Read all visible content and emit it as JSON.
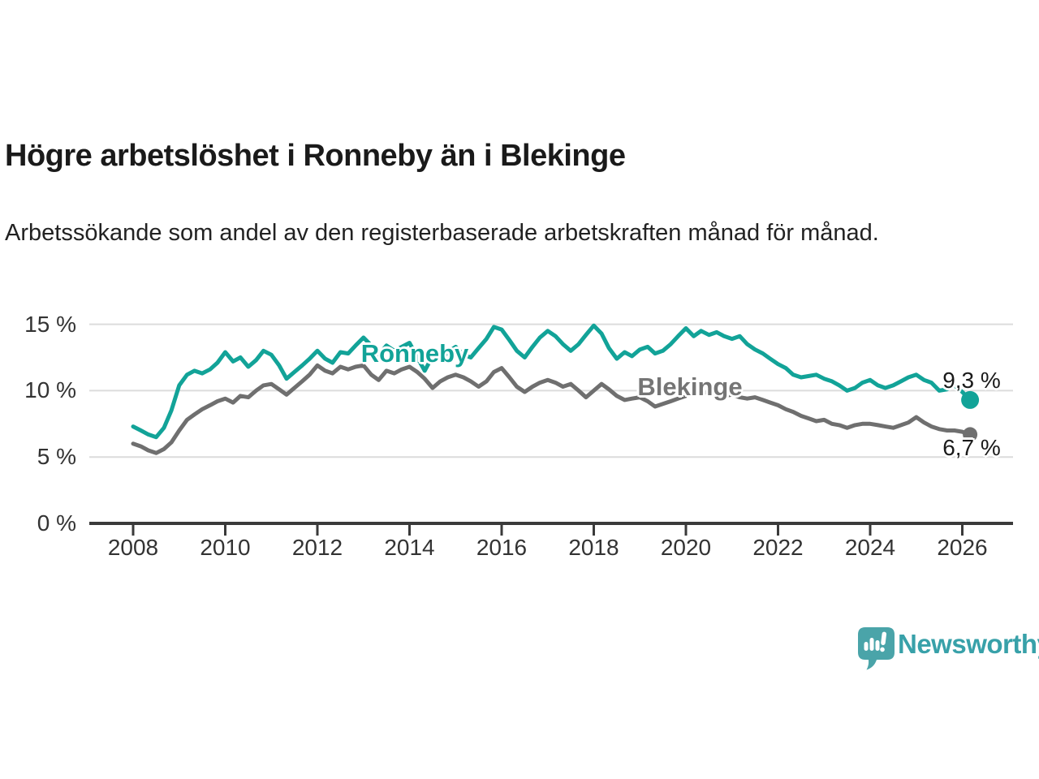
{
  "header": {
    "title": "Högre arbetslöshet i Ronneby än i Blekinge",
    "subtitle": "Arbetssökande som andel av den registerbaserade arbetskraften månad för månad."
  },
  "footer": {
    "brand": "Newsworthy"
  },
  "colors": {
    "accent_teal": "#12a398",
    "series_gray": "#6f6f6f",
    "label_gray": "#757575",
    "logo_teal": "#4aa4a9",
    "logo_text_teal": "#38a1a9",
    "grid": "#dcdcdc",
    "axis": "#3a3a3a",
    "text": "#1a1a1a"
  },
  "chart_data": {
    "type": "line",
    "title": "Högre arbetslöshet i Ronneby än i Blekinge",
    "subtitle": "Arbetssökande som andel av den registerbaserade arbetskraften månad för månad.",
    "xlabel": "",
    "ylabel": "",
    "x_tick_years": [
      2008,
      2010,
      2012,
      2014,
      2016,
      2018,
      2020,
      2022,
      2024,
      2026
    ],
    "x_tick_labels": [
      "2008",
      "2010",
      "2012",
      "2014",
      "2016",
      "2018",
      "2020",
      "2022",
      "2024",
      "2026"
    ],
    "y_tick_values": [
      0,
      5,
      10,
      15
    ],
    "y_tick_labels": [
      "0 %",
      "5 %",
      "10 %",
      "15 %"
    ],
    "ylim": [
      0,
      16
    ],
    "xlim": [
      2007.9,
      2027.1
    ],
    "grid": "horizontal",
    "legend_position": "inline-labels",
    "series": [
      {
        "name": "Ronneby",
        "color": "#12a398",
        "end_label": "9,3 %",
        "end_value": 9.3,
        "points": [
          [
            2008.0,
            7.3
          ],
          [
            2008.17,
            7.0
          ],
          [
            2008.33,
            6.7
          ],
          [
            2008.5,
            6.5
          ],
          [
            2008.67,
            7.2
          ],
          [
            2008.83,
            8.5
          ],
          [
            2009.0,
            10.4
          ],
          [
            2009.17,
            11.2
          ],
          [
            2009.33,
            11.5
          ],
          [
            2009.5,
            11.3
          ],
          [
            2009.67,
            11.6
          ],
          [
            2009.83,
            12.1
          ],
          [
            2010.0,
            12.9
          ],
          [
            2010.17,
            12.2
          ],
          [
            2010.33,
            12.5
          ],
          [
            2010.5,
            11.8
          ],
          [
            2010.67,
            12.3
          ],
          [
            2010.83,
            13.0
          ],
          [
            2011.0,
            12.7
          ],
          [
            2011.17,
            11.9
          ],
          [
            2011.33,
            10.9
          ],
          [
            2011.5,
            11.4
          ],
          [
            2011.67,
            11.9
          ],
          [
            2011.83,
            12.4
          ],
          [
            2012.0,
            13.0
          ],
          [
            2012.17,
            12.4
          ],
          [
            2012.33,
            12.1
          ],
          [
            2012.5,
            12.9
          ],
          [
            2012.67,
            12.8
          ],
          [
            2012.83,
            13.4
          ],
          [
            2013.0,
            14.0
          ],
          [
            2013.17,
            13.4
          ],
          [
            2013.33,
            12.7
          ],
          [
            2013.5,
            13.4
          ],
          [
            2013.67,
            13.0
          ],
          [
            2013.83,
            13.3
          ],
          [
            2014.0,
            13.6
          ],
          [
            2014.17,
            12.5
          ],
          [
            2014.33,
            11.5
          ],
          [
            2014.5,
            12.6
          ],
          [
            2014.67,
            12.3
          ],
          [
            2014.83,
            12.9
          ],
          [
            2015.0,
            13.3
          ],
          [
            2015.17,
            12.7
          ],
          [
            2015.33,
            12.5
          ],
          [
            2015.5,
            13.2
          ],
          [
            2015.67,
            13.9
          ],
          [
            2015.83,
            14.8
          ],
          [
            2016.0,
            14.6
          ],
          [
            2016.17,
            13.8
          ],
          [
            2016.33,
            13.0
          ],
          [
            2016.5,
            12.5
          ],
          [
            2016.67,
            13.3
          ],
          [
            2016.83,
            14.0
          ],
          [
            2017.0,
            14.5
          ],
          [
            2017.17,
            14.1
          ],
          [
            2017.33,
            13.5
          ],
          [
            2017.5,
            13.0
          ],
          [
            2017.67,
            13.5
          ],
          [
            2017.83,
            14.2
          ],
          [
            2018.0,
            14.9
          ],
          [
            2018.17,
            14.3
          ],
          [
            2018.33,
            13.2
          ],
          [
            2018.5,
            12.4
          ],
          [
            2018.67,
            12.9
          ],
          [
            2018.83,
            12.6
          ],
          [
            2019.0,
            13.1
          ],
          [
            2019.17,
            13.3
          ],
          [
            2019.33,
            12.8
          ],
          [
            2019.5,
            13.0
          ],
          [
            2019.67,
            13.5
          ],
          [
            2019.83,
            14.1
          ],
          [
            2020.0,
            14.7
          ],
          [
            2020.17,
            14.1
          ],
          [
            2020.33,
            14.5
          ],
          [
            2020.5,
            14.2
          ],
          [
            2020.67,
            14.4
          ],
          [
            2020.83,
            14.1
          ],
          [
            2021.0,
            13.9
          ],
          [
            2021.17,
            14.1
          ],
          [
            2021.33,
            13.5
          ],
          [
            2021.5,
            13.1
          ],
          [
            2021.67,
            12.8
          ],
          [
            2021.83,
            12.4
          ],
          [
            2022.0,
            12.0
          ],
          [
            2022.17,
            11.7
          ],
          [
            2022.33,
            11.2
          ],
          [
            2022.5,
            11.0
          ],
          [
            2022.67,
            11.1
          ],
          [
            2022.83,
            11.2
          ],
          [
            2023.0,
            10.9
          ],
          [
            2023.17,
            10.7
          ],
          [
            2023.33,
            10.4
          ],
          [
            2023.5,
            10.0
          ],
          [
            2023.67,
            10.2
          ],
          [
            2023.83,
            10.6
          ],
          [
            2024.0,
            10.8
          ],
          [
            2024.17,
            10.4
          ],
          [
            2024.33,
            10.2
          ],
          [
            2024.5,
            10.4
          ],
          [
            2024.67,
            10.7
          ],
          [
            2024.83,
            11.0
          ],
          [
            2025.0,
            11.2
          ],
          [
            2025.17,
            10.8
          ],
          [
            2025.33,
            10.6
          ],
          [
            2025.5,
            10.0
          ],
          [
            2025.67,
            10.1
          ],
          [
            2025.83,
            10.4
          ],
          [
            2026.0,
            9.9
          ],
          [
            2026.17,
            9.3
          ]
        ]
      },
      {
        "name": "Blekinge",
        "color": "#6f6f6f",
        "end_label": "6,7 %",
        "end_value": 6.7,
        "points": [
          [
            2008.0,
            6.0
          ],
          [
            2008.17,
            5.8
          ],
          [
            2008.33,
            5.5
          ],
          [
            2008.5,
            5.3
          ],
          [
            2008.67,
            5.6
          ],
          [
            2008.83,
            6.1
          ],
          [
            2009.0,
            7.0
          ],
          [
            2009.17,
            7.8
          ],
          [
            2009.33,
            8.2
          ],
          [
            2009.5,
            8.6
          ],
          [
            2009.67,
            8.9
          ],
          [
            2009.83,
            9.2
          ],
          [
            2010.0,
            9.4
          ],
          [
            2010.17,
            9.1
          ],
          [
            2010.33,
            9.6
          ],
          [
            2010.5,
            9.5
          ],
          [
            2010.67,
            10.0
          ],
          [
            2010.83,
            10.4
          ],
          [
            2011.0,
            10.5
          ],
          [
            2011.17,
            10.1
          ],
          [
            2011.33,
            9.7
          ],
          [
            2011.5,
            10.2
          ],
          [
            2011.67,
            10.7
          ],
          [
            2011.83,
            11.2
          ],
          [
            2012.0,
            11.9
          ],
          [
            2012.17,
            11.5
          ],
          [
            2012.33,
            11.3
          ],
          [
            2012.5,
            11.8
          ],
          [
            2012.67,
            11.6
          ],
          [
            2012.83,
            11.8
          ],
          [
            2013.0,
            11.9
          ],
          [
            2013.17,
            11.2
          ],
          [
            2013.33,
            10.8
          ],
          [
            2013.5,
            11.5
          ],
          [
            2013.67,
            11.3
          ],
          [
            2013.83,
            11.6
          ],
          [
            2014.0,
            11.8
          ],
          [
            2014.17,
            11.4
          ],
          [
            2014.33,
            10.9
          ],
          [
            2014.5,
            10.2
          ],
          [
            2014.67,
            10.7
          ],
          [
            2014.83,
            11.0
          ],
          [
            2015.0,
            11.2
          ],
          [
            2015.17,
            11.0
          ],
          [
            2015.33,
            10.7
          ],
          [
            2015.5,
            10.3
          ],
          [
            2015.67,
            10.7
          ],
          [
            2015.83,
            11.4
          ],
          [
            2016.0,
            11.7
          ],
          [
            2016.17,
            11.0
          ],
          [
            2016.33,
            10.3
          ],
          [
            2016.5,
            9.9
          ],
          [
            2016.67,
            10.3
          ],
          [
            2016.83,
            10.6
          ],
          [
            2017.0,
            10.8
          ],
          [
            2017.17,
            10.6
          ],
          [
            2017.33,
            10.3
          ],
          [
            2017.5,
            10.5
          ],
          [
            2017.67,
            10.0
          ],
          [
            2017.83,
            9.5
          ],
          [
            2018.0,
            10.0
          ],
          [
            2018.17,
            10.5
          ],
          [
            2018.33,
            10.1
          ],
          [
            2018.5,
            9.6
          ],
          [
            2018.67,
            9.3
          ],
          [
            2018.83,
            9.4
          ],
          [
            2019.0,
            9.5
          ],
          [
            2019.17,
            9.2
          ],
          [
            2019.33,
            8.8
          ],
          [
            2019.5,
            9.0
          ],
          [
            2019.67,
            9.2
          ],
          [
            2019.83,
            9.4
          ],
          [
            2020.0,
            9.6
          ],
          [
            2020.17,
            9.9
          ],
          [
            2020.33,
            9.8
          ],
          [
            2020.5,
            9.9
          ],
          [
            2020.67,
            9.7
          ],
          [
            2020.83,
            9.6
          ],
          [
            2021.0,
            9.7
          ],
          [
            2021.17,
            9.5
          ],
          [
            2021.33,
            9.4
          ],
          [
            2021.5,
            9.5
          ],
          [
            2021.67,
            9.3
          ],
          [
            2021.83,
            9.1
          ],
          [
            2022.0,
            8.9
          ],
          [
            2022.17,
            8.6
          ],
          [
            2022.33,
            8.4
          ],
          [
            2022.5,
            8.1
          ],
          [
            2022.67,
            7.9
          ],
          [
            2022.83,
            7.7
          ],
          [
            2023.0,
            7.8
          ],
          [
            2023.17,
            7.5
          ],
          [
            2023.33,
            7.4
          ],
          [
            2023.5,
            7.2
          ],
          [
            2023.67,
            7.4
          ],
          [
            2023.83,
            7.5
          ],
          [
            2024.0,
            7.5
          ],
          [
            2024.17,
            7.4
          ],
          [
            2024.33,
            7.3
          ],
          [
            2024.5,
            7.2
          ],
          [
            2024.67,
            7.4
          ],
          [
            2024.83,
            7.6
          ],
          [
            2025.0,
            8.0
          ],
          [
            2025.17,
            7.6
          ],
          [
            2025.33,
            7.3
          ],
          [
            2025.5,
            7.1
          ],
          [
            2025.67,
            7.0
          ],
          [
            2025.83,
            7.0
          ],
          [
            2026.0,
            6.9
          ],
          [
            2026.17,
            6.7
          ]
        ]
      }
    ]
  }
}
